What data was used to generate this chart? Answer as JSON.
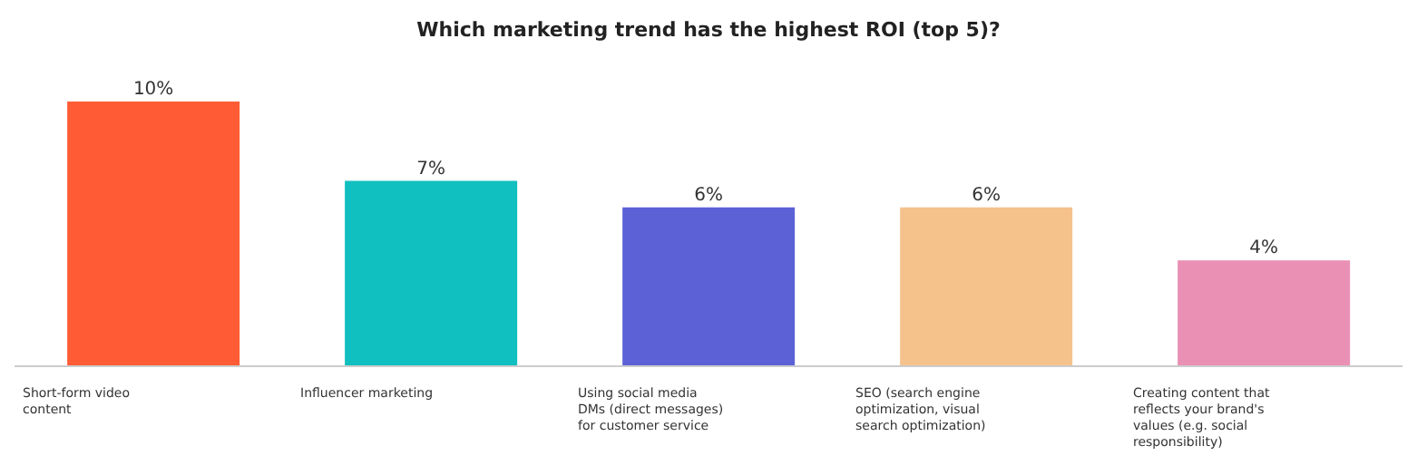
{
  "chart_data": {
    "type": "bar",
    "title": "Which marketing trend has the highest ROI (top 5)?",
    "categories": [
      "Short-form video content",
      "Influencer marketing",
      "Using social media DMs (direct messages) for customer service",
      "SEO (search engine optimization, visual search optimization)",
      "Creating content that reflects your brand's values (e.g. social responsibility)"
    ],
    "values": [
      10,
      7,
      6,
      6,
      4
    ],
    "colors": [
      "#ff5c35",
      "#10bfbf",
      "#5c62d6",
      "#f5c28c",
      "#e990b4"
    ],
    "value_labels": [
      "10%",
      "7%",
      "6%",
      "6%",
      "4%"
    ],
    "tick_labels": "x"
  }
}
